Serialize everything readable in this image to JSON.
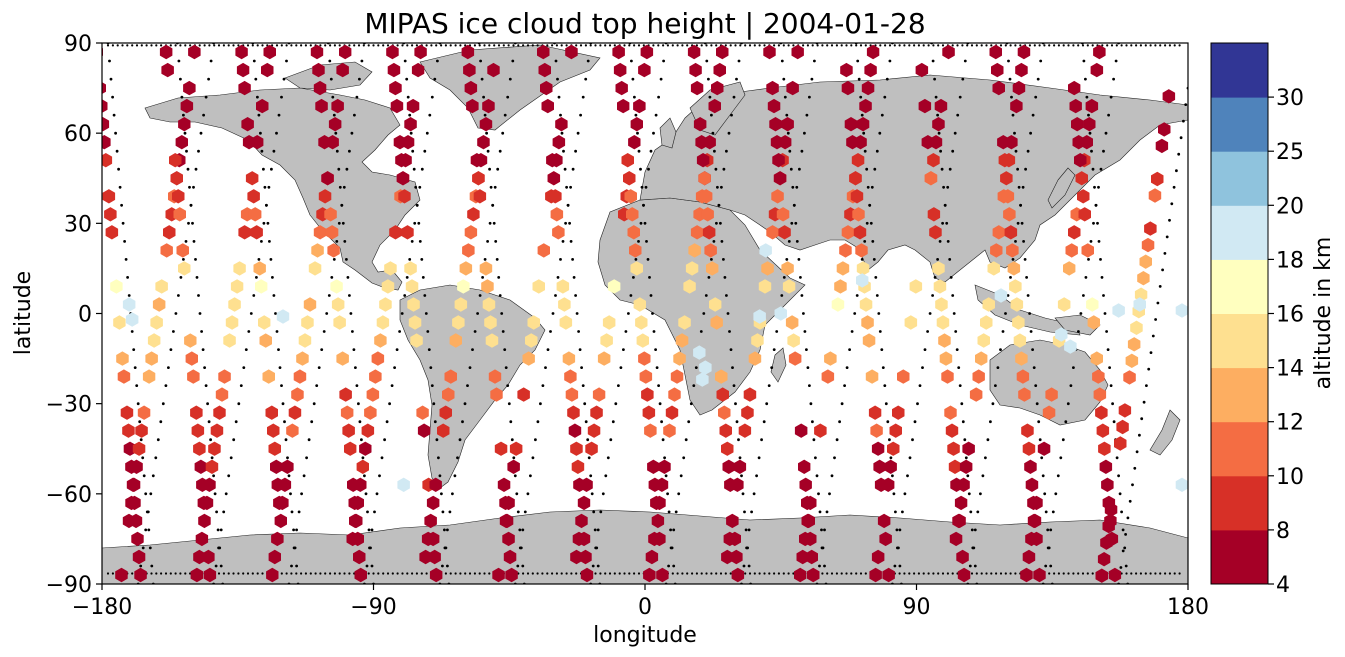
{
  "chart_data": {
    "type": "scatter",
    "title": "MIPAS ice cloud top height | 2004-01-28",
    "xlabel": "longitude",
    "ylabel": "latitude",
    "xlim": [
      -180,
      180
    ],
    "ylim": [
      -90,
      90
    ],
    "xticks": [
      -180,
      -90,
      0,
      90,
      180
    ],
    "yticks": [
      -90,
      -60,
      -30,
      0,
      30,
      60,
      90
    ],
    "xtick_labels": [
      "−180",
      "−90",
      "0",
      "90",
      "180"
    ],
    "ytick_labels": [
      "−90",
      "−60",
      "−30",
      "0",
      "30",
      "60",
      "90"
    ],
    "grid": false,
    "land_color": "#bfbfbf",
    "track_color": "#000000",
    "marker": "hexagon",
    "colorbar": {
      "label": "altitude in km",
      "bounds": [
        4,
        8,
        10,
        12,
        14,
        16,
        18,
        20,
        25,
        30
      ],
      "tick_labels": [
        "4",
        "8",
        "10",
        "12",
        "14",
        "16",
        "18",
        "20",
        "25",
        "30"
      ],
      "colors": [
        "#a50026",
        "#d73027",
        "#f46d43",
        "#fdae61",
        "#fee090",
        "#ffffbf",
        "#d1e9f3",
        "#8fc3dd",
        "#4f83bb",
        "#313695"
      ]
    },
    "orbits": [
      {
        "lon_start": -178,
        "lat_start": 90,
        "lon_end": -163,
        "lat_end": -90,
        "asc": false
      },
      {
        "lon_start": -168,
        "lat_start": -90,
        "lon_end": -143,
        "lat_end": 90,
        "asc": true
      },
      {
        "lon_start": -155,
        "lat_start": 90,
        "lon_end": -140,
        "lat_end": -90,
        "asc": false
      },
      {
        "lon_start": -143,
        "lat_start": -90,
        "lon_end": -118,
        "lat_end": 90,
        "asc": true
      },
      {
        "lon_start": -130,
        "lat_start": 90,
        "lon_end": -115,
        "lat_end": -90,
        "asc": false
      },
      {
        "lon_start": -118,
        "lat_start": -90,
        "lon_end": -93,
        "lat_end": 90,
        "asc": true
      },
      {
        "lon_start": -105,
        "lat_start": 90,
        "lon_end": -90,
        "lat_end": -90,
        "asc": false
      },
      {
        "lon_start": -93,
        "lat_start": -90,
        "lon_end": -68,
        "lat_end": 90,
        "asc": true
      },
      {
        "lon_start": -80,
        "lat_start": 90,
        "lon_end": -65,
        "lat_end": -90,
        "asc": false
      },
      {
        "lon_start": -68,
        "lat_start": -90,
        "lon_end": -43,
        "lat_end": 90,
        "asc": true
      },
      {
        "lon_start": -55,
        "lat_start": 90,
        "lon_end": -40,
        "lat_end": -90,
        "asc": false
      },
      {
        "lon_start": -43,
        "lat_start": -90,
        "lon_end": -18,
        "lat_end": 90,
        "asc": true
      },
      {
        "lon_start": -30,
        "lat_start": 90,
        "lon_end": -15,
        "lat_end": -90,
        "asc": false
      },
      {
        "lon_start": -18,
        "lat_start": -90,
        "lon_end": 7,
        "lat_end": 90,
        "asc": true
      },
      {
        "lon_start": -5,
        "lat_start": 90,
        "lon_end": 10,
        "lat_end": -90,
        "asc": false
      },
      {
        "lon_start": 7,
        "lat_start": -90,
        "lon_end": 32,
        "lat_end": 90,
        "asc": true
      },
      {
        "lon_start": 20,
        "lat_start": 90,
        "lon_end": 35,
        "lat_end": -90,
        "asc": false
      },
      {
        "lon_start": 32,
        "lat_start": -90,
        "lon_end": 57,
        "lat_end": 90,
        "asc": true
      },
      {
        "lon_start": 45,
        "lat_start": 90,
        "lon_end": 60,
        "lat_end": -90,
        "asc": false
      },
      {
        "lon_start": 57,
        "lat_start": -90,
        "lon_end": 82,
        "lat_end": 90,
        "asc": true
      },
      {
        "lon_start": 70,
        "lat_start": 90,
        "lon_end": 85,
        "lat_end": -90,
        "asc": false
      },
      {
        "lon_start": 82,
        "lat_start": -90,
        "lon_end": 107,
        "lat_end": 90,
        "asc": true
      },
      {
        "lon_start": 95,
        "lat_start": 90,
        "lon_end": 110,
        "lat_end": -90,
        "asc": false
      },
      {
        "lon_start": 107,
        "lat_start": -90,
        "lon_end": 132,
        "lat_end": 90,
        "asc": true
      },
      {
        "lon_start": 120,
        "lat_start": 90,
        "lon_end": 135,
        "lat_end": -90,
        "asc": false
      },
      {
        "lon_start": 132,
        "lat_start": -90,
        "lon_end": 157,
        "lat_end": 90,
        "asc": true
      },
      {
        "lon_start": 145,
        "lat_start": 90,
        "lon_end": 160,
        "lat_end": -90,
        "asc": false
      },
      {
        "lon_start": 157,
        "lat_start": -90,
        "lon_end": 180,
        "lat_end": 75,
        "asc": true
      }
    ],
    "altitude_profile_km": [
      [
        90,
        6
      ],
      [
        70,
        6
      ],
      [
        55,
        7
      ],
      [
        45,
        9
      ],
      [
        35,
        11
      ],
      [
        25,
        9
      ],
      [
        18,
        13
      ],
      [
        10,
        15
      ],
      [
        0,
        15
      ],
      [
        -10,
        14
      ],
      [
        -18,
        12
      ],
      [
        -28,
        10
      ],
      [
        -40,
        9
      ],
      [
        -55,
        7
      ],
      [
        -70,
        6
      ],
      [
        -90,
        6
      ]
    ],
    "blue_points": [
      [
        -171,
        3,
        19
      ],
      [
        -170,
        -2,
        19
      ],
      [
        -120,
        -1,
        19
      ],
      [
        -80,
        -57,
        19
      ],
      [
        40,
        21,
        19
      ],
      [
        38,
        -1,
        19
      ],
      [
        45,
        0,
        19
      ],
      [
        72,
        11,
        19
      ],
      [
        118,
        6,
        19
      ],
      [
        138,
        -7,
        19
      ],
      [
        141,
        -11,
        19
      ],
      [
        157,
        1,
        19
      ],
      [
        164,
        3,
        19
      ],
      [
        178,
        1,
        19
      ],
      [
        178,
        -57,
        19
      ],
      [
        18,
        -13,
        19
      ],
      [
        20,
        -18,
        19
      ],
      [
        19,
        -22,
        19
      ]
    ]
  }
}
